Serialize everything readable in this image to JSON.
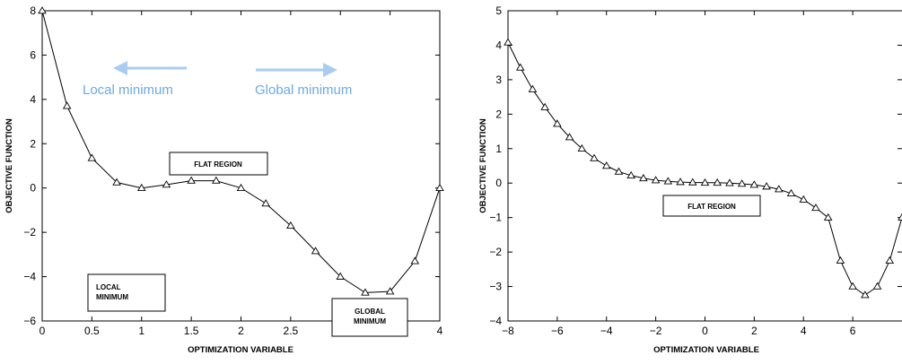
{
  "colors": {
    "line": "#000000",
    "arrow": "#a9cdf0",
    "arrow_text": "#6aaae8",
    "background": "#ffffff"
  },
  "chart_data": [
    {
      "type": "line",
      "xlabel": "OPTIMIZATION VARIABLE",
      "ylabel": "OBJECTIVE FUNCTION",
      "xlim": [
        0,
        4
      ],
      "ylim": [
        -6,
        8
      ],
      "xticks": [
        "0",
        "0.5",
        "1",
        "1.5",
        "2",
        "2.5",
        "3",
        "3.5",
        "4"
      ],
      "yticks": [
        "8",
        "6",
        "4",
        "2",
        "0",
        "−2",
        "−4",
        "−6"
      ],
      "marker": "triangle",
      "series": [
        {
          "x": [
            0,
            0.25,
            0.5,
            0.75,
            1.0,
            1.25,
            1.5,
            1.75,
            2.0,
            2.25,
            2.5,
            2.75,
            3.0,
            3.25,
            3.5,
            3.75,
            4.0
          ],
          "y": [
            8.0,
            3.7,
            1.35,
            0.25,
            0.0,
            0.15,
            0.33,
            0.33,
            0.0,
            -0.7,
            -1.7,
            -2.85,
            -4.0,
            -4.72,
            -4.67,
            -3.3,
            0.0
          ]
        }
      ],
      "annotations": {
        "local_minimum_box": [
          "LOCAL",
          "MINIMUM"
        ],
        "flat_region_box": [
          "FLAT REGION"
        ],
        "global_minimum_box": [
          "GLOBAL",
          "MINIMUM"
        ],
        "arrow_left_label": "Local minimum",
        "arrow_right_label": "Global minimum"
      }
    },
    {
      "type": "line",
      "xlabel": "OPTIMIZATION VARIABLE",
      "ylabel": "OBJECTIVE FUNCTION",
      "xlim": [
        -8,
        8
      ],
      "ylim": [
        -4,
        5
      ],
      "xticks": [
        "−8",
        "−6",
        "−4",
        "−2",
        "0",
        "2",
        "4",
        "6"
      ],
      "yticks": [
        "5",
        "4",
        "3",
        "2",
        "1",
        "0",
        "−1",
        "−2",
        "−3",
        "−4"
      ],
      "marker": "triangle",
      "series": [
        {
          "x": [
            -8.0,
            -7.5,
            -7.0,
            -6.5,
            -6.0,
            -5.5,
            -5.0,
            -4.5,
            -4.0,
            -3.5,
            -3.0,
            -2.5,
            -2.0,
            -1.5,
            -1.0,
            -0.5,
            0.0,
            0.5,
            1.0,
            1.5,
            2.0,
            2.5,
            3.0,
            3.5,
            4.0,
            4.5,
            5.0,
            5.5,
            6.0,
            6.5,
            7.0,
            7.5,
            8.0
          ],
          "y": [
            4.08,
            3.35,
            2.72,
            2.2,
            1.72,
            1.33,
            1.0,
            0.72,
            0.5,
            0.33,
            0.22,
            0.14,
            0.08,
            0.05,
            0.03,
            0.02,
            0.01,
            0.01,
            0.0,
            -0.02,
            -0.05,
            -0.1,
            -0.18,
            -0.3,
            -0.48,
            -0.72,
            -1.0,
            -2.25,
            -3.0,
            -3.25,
            -3.0,
            -2.25,
            -1.0
          ]
        }
      ],
      "annotations": {
        "flat_region_box": [
          "FLAT REGION"
        ]
      }
    }
  ]
}
